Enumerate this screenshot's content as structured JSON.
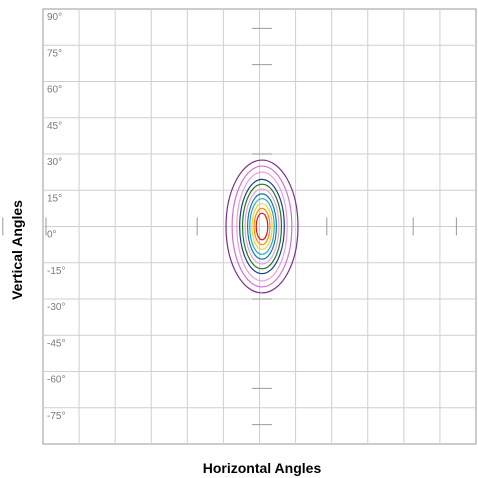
{
  "chart_data": {
    "type": "contour",
    "xlabel": "Horizontal Angles",
    "ylabel": "Vertical Angles",
    "ylim": [
      -90,
      90
    ],
    "xlim": [
      -90,
      90
    ],
    "y_ticks": [
      "90°",
      "75°",
      "60°",
      "45°",
      "30°",
      "15°",
      "0°",
      "-15°",
      "-30°",
      "-45°",
      "-60°",
      "-75°"
    ],
    "grid": true,
    "center": {
      "h": 0,
      "v": 0
    },
    "contours": [
      {
        "color": "#7b2d8e",
        "h_half": 10.0,
        "v_half": 27.5
      },
      {
        "color": "#d070d8",
        "h_half": 8.3,
        "v_half": 25.0
      },
      {
        "color": "#e8a0d8",
        "h_half": 7.0,
        "v_half": 22.5
      },
      {
        "color": "#1a3d8f",
        "h_half": 6.2,
        "v_half": 19.5
      },
      {
        "color": "#1a7a1a",
        "h_half": 5.4,
        "v_half": 17.5
      },
      {
        "color": "#e8a0e0",
        "h_half": 4.7,
        "v_half": 15.5
      },
      {
        "color": "#0a7aa0",
        "h_half": 4.0,
        "v_half": 13.5
      },
      {
        "color": "#20a8d8",
        "h_half": 3.4,
        "v_half": 11.5
      },
      {
        "color": "#ffd020",
        "h_half": 2.8,
        "v_half": 9.5
      },
      {
        "color": "#ff8800",
        "h_half": 2.2,
        "v_half": 7.5
      },
      {
        "color": "#e01010",
        "h_half": 1.6,
        "v_half": 5.5
      }
    ]
  }
}
